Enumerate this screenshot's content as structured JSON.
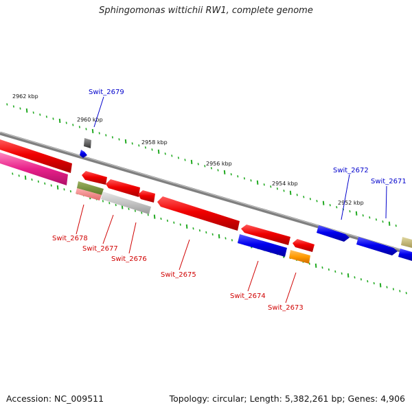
{
  "title": "Sphingomonas wittichii RW1, complete genome",
  "footer": {
    "accession": "Accession: NC_009511",
    "summary": "Topology: circular; Length: 5,382,261 bp; Genes: 4,906"
  },
  "tick_labels": [
    "2962 kbp",
    "2960 kbp",
    "2958 kbp",
    "2956 kbp",
    "2954 kbp",
    "2952 kbp"
  ],
  "gene_labels": {
    "swit_2679": "Swit_2679",
    "swit_2678": "Swit_2678",
    "swit_2677": "Swit_2677",
    "swit_2676": "Swit_2676",
    "swit_2675": "Swit_2675",
    "swit_2674": "Swit_2674",
    "swit_2673": "Swit_2673",
    "swit_2672": "Swit_2672",
    "swit_2671": "Swit_2671"
  },
  "colors": {
    "forward_gene": "#ff0000",
    "reverse_gene": "#0000ee",
    "backbone": "#888888",
    "ticks": "#22aa22",
    "label_red": "#d00000",
    "label_blue": "#0000cc"
  }
}
